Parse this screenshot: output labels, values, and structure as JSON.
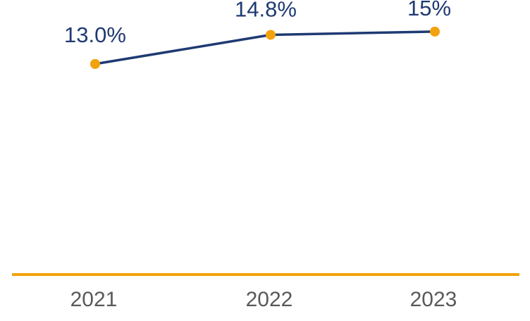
{
  "chart_data": {
    "type": "line",
    "title": "",
    "xlabel": "",
    "ylabel": "",
    "categories": [
      "2021",
      "2022",
      "2023"
    ],
    "series": [
      {
        "values": [
          13.0,
          14.8,
          15.0
        ],
        "data_labels": [
          "13.0%",
          "14.8%",
          "15%"
        ]
      }
    ],
    "ylim": [
      0,
      16.95
    ],
    "grid": false,
    "legend": "none",
    "colors": {
      "line": "#1F3A73",
      "marker": "#F2A20C",
      "axis": "#F2A20C",
      "label_text": "#1F3A73",
      "tick_text": "#595959"
    }
  }
}
